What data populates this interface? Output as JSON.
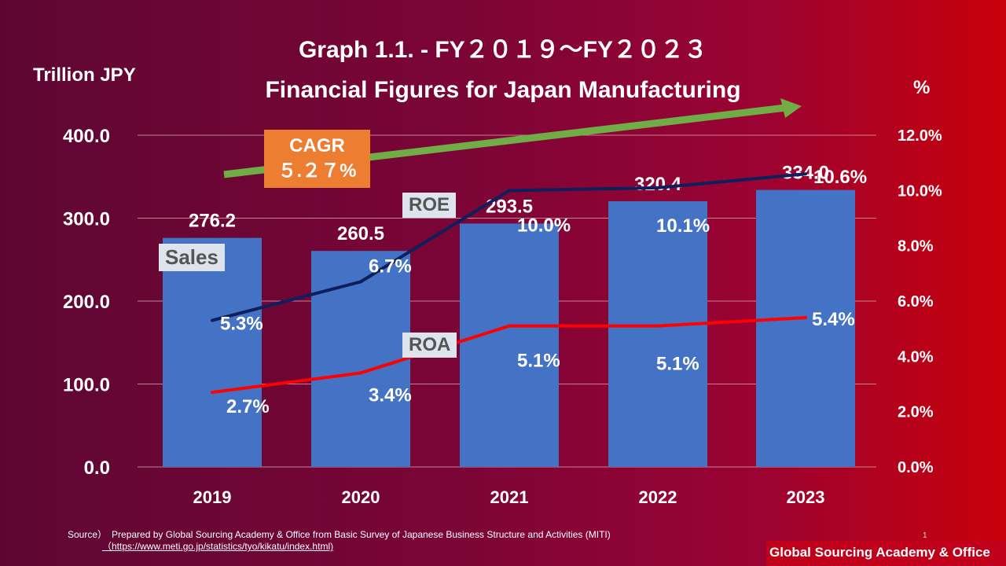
{
  "title_line1": "Graph 1.1. - FY２０１９～FY２０２３",
  "title_line2": "Financial Figures for Japan Manufacturing",
  "chart_data": {
    "type": "bar+line",
    "categories": [
      "2019",
      "2020",
      "2021",
      "2022",
      "2023"
    ],
    "y_left": {
      "label": "Trillion JPY",
      "range": [
        0,
        400
      ],
      "ticks": [
        "0.0",
        "100.0",
        "200.0",
        "300.0",
        "400.0"
      ]
    },
    "y_right": {
      "label": "%",
      "range": [
        0,
        12
      ],
      "ticks": [
        "0.0%",
        "2.0%",
        "4.0%",
        "6.0%",
        "8.0%",
        "10.0%",
        "12.0%"
      ]
    },
    "grid": true,
    "series": [
      {
        "name": "Sales",
        "type": "bar",
        "axis": "left",
        "values": [
          276.2,
          260.5,
          293.5,
          320.4,
          334.0
        ],
        "labels": [
          "276.2",
          "260.5",
          "293.5",
          "320.4",
          "334.0"
        ],
        "color": "#4472c4"
      },
      {
        "name": "ROE",
        "type": "line",
        "axis": "right",
        "values": [
          5.3,
          6.7,
          10.0,
          10.1,
          10.6
        ],
        "labels": [
          "5.3%",
          "6.7%",
          "10.0%",
          "10.1%",
          "10.6%"
        ],
        "color": "#0d1f5c"
      },
      {
        "name": "ROA",
        "type": "line",
        "axis": "right",
        "values": [
          2.7,
          3.4,
          5.1,
          5.1,
          5.4
        ],
        "labels": [
          "2.7%",
          "3.4%",
          "5.1%",
          "5.1%",
          "5.4%"
        ],
        "color": "#ff0000"
      }
    ],
    "annotation": {
      "label": "CAGR",
      "value": "５.２７%",
      "arrow_color": "#70ad47",
      "box_color": "#ed7d31"
    }
  },
  "source": "Source）　Prepared by Global Sourcing Academy & Office from Basic Survey of Japanese Business Structure and Activities (MITI)",
  "source_url": "（https://www.meti.go.jp/statistics/tyo/kikatu/index.html)",
  "page_number": "1",
  "footer": "Global Sourcing Academy & Office"
}
